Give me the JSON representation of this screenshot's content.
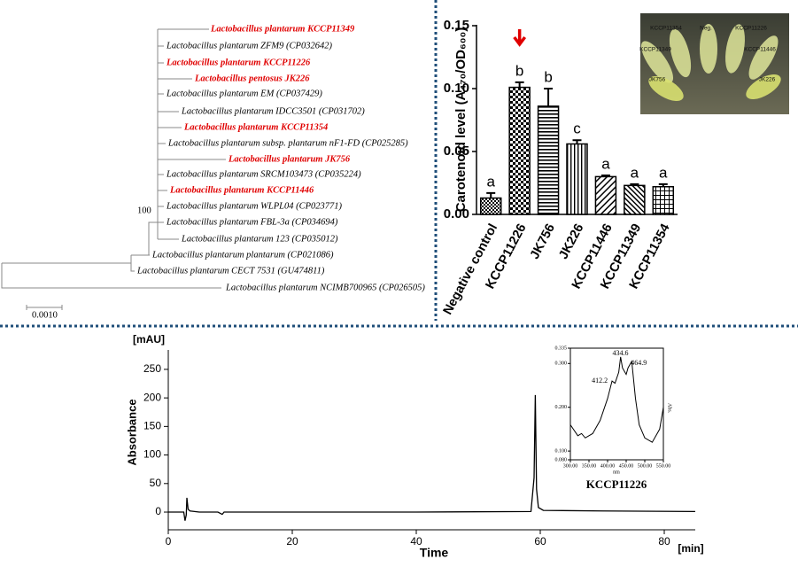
{
  "tree": {
    "leaves": [
      {
        "label": "Lactobacillus plantarum KCCP11349",
        "color": "#e00000"
      },
      {
        "label": "Lactobacillus plantarum ZFM9 (CP032642)",
        "color": "#000000"
      },
      {
        "label": "Lactobacillus plantarum KCCP11226",
        "color": "#e00000"
      },
      {
        "label": "Lactobacillus pentosus JK226",
        "color": "#e00000"
      },
      {
        "label": "Lactobacillus plantarum EM (CP037429)",
        "color": "#000000"
      },
      {
        "label": "Lactobacillus plantarum IDCC3501 (CP031702)",
        "color": "#000000"
      },
      {
        "label": "Lactobacillus plantarum KCCP11354",
        "color": "#e00000"
      },
      {
        "label": "Lactobacillus plantarum subsp. plantarum nF1-FD (CP025285)",
        "color": "#000000"
      },
      {
        "label": "Lactobacillus plantarum JK756",
        "color": "#e00000"
      },
      {
        "label": "Lactobacillus plantarum SRCM103473 (CP035224)",
        "color": "#000000"
      },
      {
        "label": "Lactobacillus plantarum KCCP11446",
        "color": "#e00000"
      },
      {
        "label": "Lactobacillus plantarum WLPL04 (CP023771)",
        "color": "#000000"
      },
      {
        "label": "Lactobacillus plantarum FBL-3a (CP034694)",
        "color": "#000000"
      },
      {
        "label": "Lactobacillus plantarum 123 (CP035012)",
        "color": "#000000"
      },
      {
        "label": "Lactobacillus plantarum  plantarum (CP021086)",
        "color": "#000000"
      },
      {
        "label": "Lactobacillus plantarum CECT 7531  (GU474811)",
        "color": "#000000"
      },
      {
        "label": "Lactobacillus plantarum NCIMB700965 (CP026505)",
        "color": "#000000"
      }
    ],
    "bootstrap": "100",
    "scale_label": "0.0010"
  },
  "chart_data": [
    {
      "type": "bar",
      "y_label": "Carotenoid level (A₄₇₀/OD₆₀₀)",
      "categories": [
        "Negative control",
        "KCCP11226",
        "JK756",
        "JK226",
        "KCCP11446",
        "KCCP11349",
        "KCCP11354"
      ],
      "values": [
        0.013,
        0.101,
        0.086,
        0.056,
        0.03,
        0.023,
        0.022
      ],
      "errors": [
        0.004,
        0.004,
        0.014,
        0.003,
        0.001,
        0.001,
        0.002
      ],
      "group_labels": [
        "a",
        "b",
        "b",
        "c",
        "a",
        "a",
        "a"
      ],
      "color": "#000000",
      "ylim": [
        0,
        0.15
      ],
      "yticks": [
        {
          "value": 0,
          "label": "0.00"
        },
        0.05,
        {
          "value": 0.1,
          "label": "0.10"
        },
        0.15
      ],
      "inset_labels": [
        "Neg.",
        "KCCP11354",
        "KCCP11226",
        "KCCP11349",
        "KCCP11446",
        "JK756",
        "JK226"
      ]
    },
    {
      "type": "line",
      "unit_label": "[mAU]",
      "y_label": "Absorbance",
      "x_label": "Time",
      "x_unit_label": "[min]",
      "x": [
        0,
        2.5,
        2.7,
        2.9,
        3.0,
        3.2,
        3.5,
        5,
        8,
        8.7,
        9,
        10,
        20,
        40,
        58.5,
        59,
        59.2,
        59.4,
        59.7,
        60.5,
        70,
        85
      ],
      "series": [
        {
          "color": "#000000",
          "values": [
            0,
            0,
            -15,
            -5,
            25,
            5,
            2,
            0,
            0,
            -4,
            0,
            0,
            0,
            0,
            1,
            60,
            205,
            40,
            8,
            3,
            2,
            1
          ]
        }
      ],
      "xlim": [
        0,
        85
      ],
      "ylim": [
        -31,
        284
      ],
      "xticks": [
        0,
        20,
        40,
        60,
        80
      ],
      "yticks": [
        0,
        50,
        100,
        150,
        200,
        250
      ]
    },
    {
      "type": "line",
      "title": "KCCP11226",
      "x_label": "nm",
      "y_label": "Abs.",
      "x": [
        300,
        320,
        330,
        340,
        360,
        380,
        400,
        412,
        420,
        430,
        435,
        440,
        450,
        455,
        465,
        475,
        485,
        500,
        520,
        540,
        550
      ],
      "series": [
        {
          "color": "#000000",
          "values": [
            0.16,
            0.135,
            0.14,
            0.13,
            0.14,
            0.17,
            0.22,
            0.26,
            0.255,
            0.28,
            0.315,
            0.29,
            0.275,
            0.29,
            0.305,
            0.22,
            0.16,
            0.13,
            0.12,
            0.15,
            0.2
          ]
        }
      ],
      "peak_labels": [
        412.2,
        434.6,
        464.9
      ],
      "xlim": [
        300,
        550
      ],
      "ylim": [
        0.08,
        0.335
      ],
      "xticks": [
        {
          "value": 300,
          "label": "300.00"
        },
        {
          "value": 350,
          "label": "350.00"
        },
        {
          "value": 400,
          "label": "400.00"
        },
        {
          "value": 450,
          "label": "450.00"
        },
        {
          "value": 500,
          "label": "500.00"
        },
        {
          "value": 550,
          "label": "550.00"
        }
      ],
      "yticks": [
        {
          "value": 0.08,
          "label": "0.080"
        },
        {
          "value": 0.1,
          "label": "0.100"
        },
        {
          "value": 0.2,
          "label": "0.200"
        },
        {
          "value": 0.3,
          "label": "0.300"
        },
        0.335
      ]
    }
  ]
}
